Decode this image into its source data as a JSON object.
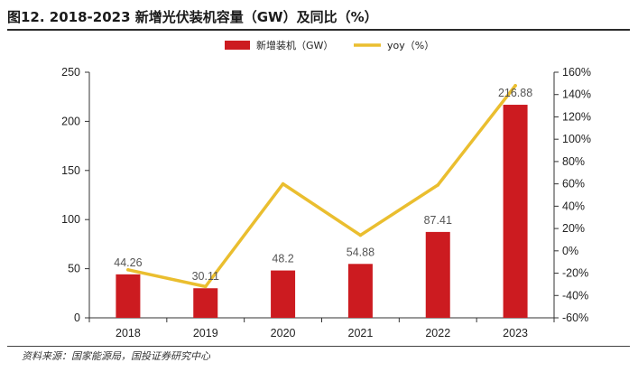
{
  "title": "图12. 2018-2023 新增光伏装机容量（GW）及同比（%）",
  "source": "资料来源：国家能源局，国投证券研究中心",
  "colors": {
    "bar": "#cc1b20",
    "line": "#eabe2f",
    "axis": "#333333"
  },
  "chart_data": {
    "type": "bar",
    "categories": [
      "2018",
      "2019",
      "2020",
      "2021",
      "2022",
      "2023"
    ],
    "series": [
      {
        "name": "新增装机（GW）",
        "type": "bar",
        "axis": "left",
        "values": [
          44.26,
          30.11,
          48.2,
          54.88,
          87.41,
          216.88
        ]
      },
      {
        "name": "yoy（%）",
        "type": "line",
        "axis": "right",
        "values": [
          -17,
          -32,
          60,
          14,
          59,
          148
        ]
      }
    ],
    "data_labels": [
      "44.26",
      "30.11",
      "48.2",
      "54.88",
      "87.41",
      "216.88"
    ],
    "ylim_left": [
      0,
      250
    ],
    "yticks_left": [
      "0",
      "50",
      "100",
      "150",
      "200",
      "250"
    ],
    "ylim_right": [
      -60,
      160
    ],
    "yticks_right": [
      "-60%",
      "-40%",
      "-20%",
      "0%",
      "20%",
      "40%",
      "60%",
      "80%",
      "100%",
      "120%",
      "140%",
      "160%"
    ],
    "grid": false,
    "legend_position": "top-center"
  }
}
